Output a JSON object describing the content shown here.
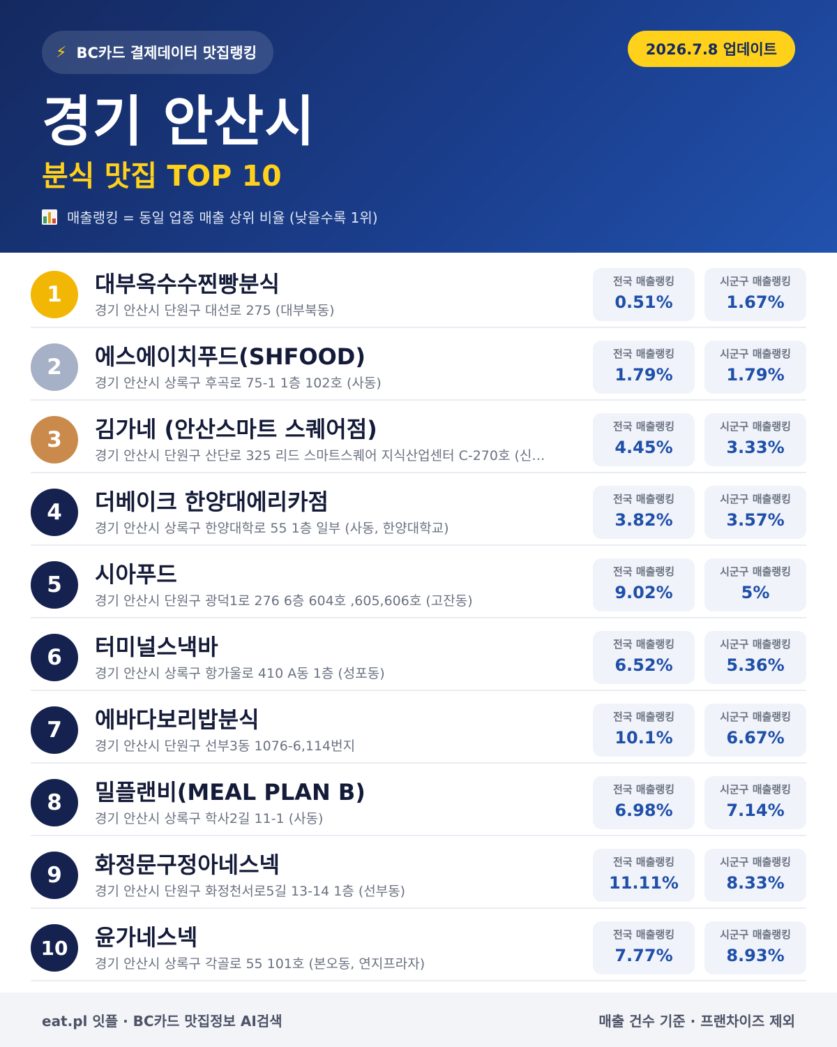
{
  "header": {
    "source": "BC카드 결제데이터 맛집랭킹",
    "update": "2026.7.8 업데이트",
    "city": "경기 안산시",
    "subtitle": "분식 맛집 TOP 10",
    "note": "매출랭킹 = 동일 업종 매출 상위 비율 (낮을수록 1위)",
    "icons": [
      "bolt-icon",
      "bar-chart-icon"
    ]
  },
  "labels": {
    "national": "전국 매출랭킹",
    "district": "시군구 매출랭킹"
  },
  "colors": {
    "gold": "#f2b705",
    "silver": "#a6b0c6",
    "bronze": "#c98a4b",
    "navy": "#15224f",
    "accent_yellow": "#ffd11a",
    "value_blue": "#1f4fa8"
  },
  "rows": [
    {
      "rank": "1",
      "name": "대부옥수수찐빵분식",
      "address": "경기 안산시 단원구 대선로 275 (대부북동)",
      "national": "0.51%",
      "district": "1.67%"
    },
    {
      "rank": "2",
      "name": "에스에이치푸드(SHFOOD)",
      "address": "경기 안산시 상록구 후곡로 75-1 1층 102호 (사동)",
      "national": "1.79%",
      "district": "1.79%"
    },
    {
      "rank": "3",
      "name": "김가네 (안산스마트 스퀘어점)",
      "address": "경기 안산시 단원구 산단로 325 리드 스마트스퀘어 지식산업센터 C-270호 (신…",
      "national": "4.45%",
      "district": "3.33%"
    },
    {
      "rank": "4",
      "name": "더베이크 한양대에리카점",
      "address": "경기 안산시 상록구 한양대학로 55 1층 일부 (사동, 한양대학교)",
      "national": "3.82%",
      "district": "3.57%"
    },
    {
      "rank": "5",
      "name": "시아푸드",
      "address": "경기 안산시 단원구 광덕1로 276 6층 604호 ,605,606호 (고잔동)",
      "national": "9.02%",
      "district": "5%"
    },
    {
      "rank": "6",
      "name": "터미널스낵바",
      "address": "경기 안산시 상록구 항가울로 410 A동 1층 (성포동)",
      "national": "6.52%",
      "district": "5.36%"
    },
    {
      "rank": "7",
      "name": "에바다보리밥분식",
      "address": "경기 안산시 단원구 선부3동 1076-6,114번지",
      "national": "10.1%",
      "district": "6.67%"
    },
    {
      "rank": "8",
      "name": "밀플랜비(MEAL PLAN B)",
      "address": "경기 안산시 상록구 학사2길 11-1 (사동)",
      "national": "6.98%",
      "district": "7.14%"
    },
    {
      "rank": "9",
      "name": "화정문구정아네스넥",
      "address": "경기 안산시 단원구 화정천서로5길 13-14 1층 (선부동)",
      "national": "11.11%",
      "district": "8.33%"
    },
    {
      "rank": "10",
      "name": "윤가네스넥",
      "address": "경기 안산시 상록구 각골로 55 101호 (본오동, 연지프라자)",
      "national": "7.77%",
      "district": "8.93%"
    }
  ],
  "footer": {
    "left": "eat.pl 잇플 · BC카드 맛집정보 AI검색",
    "right": "매출 건수 기준 · 프랜차이즈 제외"
  }
}
